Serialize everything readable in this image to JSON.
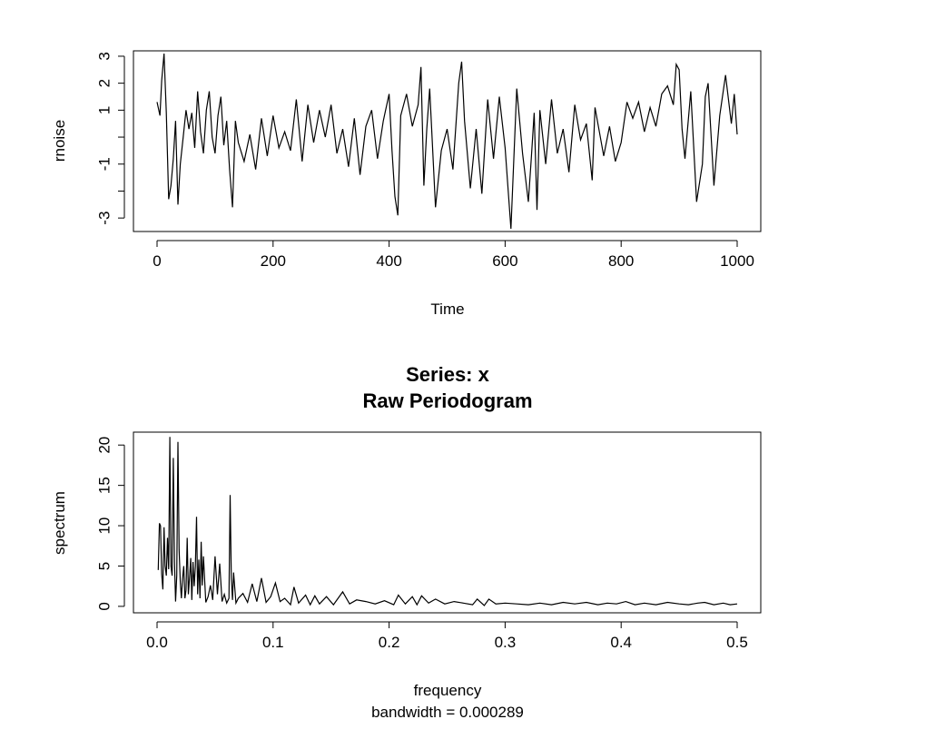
{
  "chart_data": [
    {
      "type": "line",
      "title": "",
      "xlabel": "Time",
      "ylabel": "rnoise",
      "xlim": [
        0,
        1000
      ],
      "ylim": [
        -3.5,
        3.2
      ],
      "x_ticks": [
        0,
        200,
        400,
        600,
        800,
        1000
      ],
      "x_tick_labels": [
        "0",
        "200",
        "400",
        "600",
        "800",
        "1000"
      ],
      "y_ticks": [
        -3,
        -2,
        -1,
        0,
        1,
        2,
        3
      ],
      "y_tick_labels": [
        "-3",
        "",
        "-1",
        "",
        "1",
        "2",
        "3"
      ],
      "series": [
        {
          "name": "rnoise",
          "x": [
            0,
            5,
            8,
            12,
            16,
            20,
            24,
            28,
            32,
            36,
            40,
            45,
            50,
            55,
            60,
            65,
            70,
            75,
            80,
            85,
            90,
            95,
            100,
            105,
            110,
            115,
            120,
            125,
            130,
            135,
            140,
            150,
            160,
            170,
            180,
            190,
            200,
            210,
            220,
            230,
            240,
            250,
            260,
            270,
            280,
            290,
            300,
            310,
            320,
            330,
            340,
            350,
            360,
            370,
            380,
            390,
            400,
            405,
            410,
            415,
            420,
            430,
            440,
            450,
            455,
            460,
            465,
            470,
            480,
            490,
            500,
            510,
            520,
            525,
            530,
            540,
            550,
            560,
            570,
            580,
            590,
            600,
            610,
            620,
            630,
            640,
            645,
            650,
            655,
            660,
            670,
            680,
            690,
            700,
            710,
            720,
            730,
            740,
            750,
            755,
            760,
            770,
            780,
            790,
            800,
            810,
            820,
            830,
            840,
            850,
            860,
            870,
            880,
            890,
            895,
            900,
            905,
            910,
            920,
            930,
            940,
            945,
            950,
            960,
            970,
            980,
            990,
            995,
            1000
          ],
          "values": [
            1.3,
            0.8,
            2.1,
            3.1,
            0.9,
            -2.3,
            -1.8,
            -0.8,
            0.6,
            -2.5,
            -1.0,
            0.0,
            1.0,
            0.3,
            0.9,
            -0.4,
            1.7,
            0.2,
            -0.6,
            1.0,
            1.7,
            0.0,
            -0.6,
            0.8,
            1.5,
            -0.3,
            0.6,
            -1.2,
            -2.6,
            0.6,
            -0.2,
            -0.9,
            0.1,
            -1.2,
            0.7,
            -0.7,
            0.8,
            -0.4,
            0.2,
            -0.5,
            1.4,
            -0.9,
            1.2,
            -0.2,
            1.0,
            0.0,
            1.2,
            -0.6,
            0.3,
            -1.1,
            0.7,
            -1.4,
            0.4,
            1.0,
            -0.8,
            0.6,
            1.6,
            -0.5,
            -2.2,
            -2.9,
            0.8,
            1.6,
            0.4,
            1.2,
            2.6,
            -1.8,
            0.3,
            1.8,
            -2.6,
            -0.5,
            0.3,
            -1.2,
            2.0,
            2.8,
            0.6,
            -1.9,
            0.3,
            -2.1,
            1.4,
            -0.8,
            1.5,
            -0.4,
            -3.4,
            1.8,
            -0.6,
            -2.4,
            -0.8,
            0.9,
            -2.7,
            1.0,
            -1.0,
            1.4,
            -0.6,
            0.3,
            -1.3,
            1.2,
            -0.1,
            0.5,
            -1.6,
            1.1,
            0.5,
            -0.7,
            0.4,
            -0.9,
            -0.2,
            1.3,
            0.7,
            1.3,
            0.2,
            1.1,
            0.4,
            1.6,
            1.9,
            1.2,
            2.7,
            2.5,
            0.3,
            -0.8,
            1.7,
            -2.4,
            -1.0,
            1.5,
            2.0,
            -1.8,
            0.8,
            2.3,
            0.5,
            1.6,
            0.1
          ]
        }
      ]
    },
    {
      "type": "line",
      "title": "Series: x",
      "subtitle": "Raw Periodogram",
      "xlabel": "frequency",
      "xlabel_sub": "bandwidth = 0.000289",
      "ylabel": "spectrum",
      "xlim": [
        0,
        0.5
      ],
      "ylim": [
        -0.8,
        21.6
      ],
      "x_ticks": [
        0,
        0.1,
        0.2,
        0.3,
        0.4,
        0.5
      ],
      "x_tick_labels": [
        "0.0",
        "0.1",
        "0.2",
        "0.3",
        "0.4",
        "0.5"
      ],
      "y_ticks": [
        0,
        5,
        10,
        15,
        20
      ],
      "y_tick_labels": [
        "0",
        "5",
        "10",
        "15",
        "20"
      ],
      "series": [
        {
          "name": "spectrum",
          "x": [
            0.001,
            0.002,
            0.003,
            0.004,
            0.005,
            0.006,
            0.007,
            0.008,
            0.009,
            0.01,
            0.011,
            0.012,
            0.013,
            0.014,
            0.015,
            0.016,
            0.017,
            0.018,
            0.019,
            0.02,
            0.021,
            0.022,
            0.023,
            0.024,
            0.025,
            0.026,
            0.027,
            0.028,
            0.029,
            0.03,
            0.031,
            0.032,
            0.033,
            0.034,
            0.035,
            0.036,
            0.037,
            0.038,
            0.039,
            0.04,
            0.042,
            0.044,
            0.046,
            0.048,
            0.05,
            0.052,
            0.054,
            0.056,
            0.058,
            0.06,
            0.062,
            0.063,
            0.064,
            0.065,
            0.066,
            0.068,
            0.07,
            0.074,
            0.078,
            0.082,
            0.086,
            0.09,
            0.094,
            0.098,
            0.102,
            0.106,
            0.11,
            0.115,
            0.118,
            0.122,
            0.128,
            0.132,
            0.136,
            0.14,
            0.146,
            0.152,
            0.16,
            0.166,
            0.172,
            0.18,
            0.188,
            0.196,
            0.204,
            0.208,
            0.214,
            0.22,
            0.224,
            0.228,
            0.234,
            0.24,
            0.248,
            0.256,
            0.264,
            0.272,
            0.276,
            0.282,
            0.286,
            0.292,
            0.3,
            0.31,
            0.32,
            0.33,
            0.34,
            0.35,
            0.36,
            0.37,
            0.38,
            0.388,
            0.396,
            0.404,
            0.412,
            0.42,
            0.43,
            0.44,
            0.45,
            0.458,
            0.466,
            0.472,
            0.48,
            0.488,
            0.494,
            0.5
          ],
          "values": [
            4.5,
            10.3,
            10.0,
            4.0,
            2.1,
            9.8,
            5.0,
            3.8,
            8.5,
            4.6,
            21.0,
            5.0,
            3.8,
            18.4,
            5.5,
            0.6,
            3.8,
            20.4,
            7.0,
            3.0,
            1.0,
            3.5,
            5.0,
            1.0,
            2.0,
            8.5,
            1.5,
            3.6,
            6.0,
            0.8,
            5.5,
            2.5,
            5.0,
            11.1,
            1.5,
            5.8,
            1.0,
            8.0,
            2.6,
            6.2,
            0.5,
            1.2,
            2.6,
            0.8,
            6.2,
            1.5,
            5.3,
            0.6,
            1.5,
            0.4,
            1.0,
            13.8,
            3.5,
            0.8,
            4.2,
            0.4,
            1.0,
            1.6,
            0.5,
            2.8,
            0.6,
            3.5,
            0.5,
            1.2,
            2.9,
            0.6,
            1.0,
            0.2,
            2.4,
            0.4,
            1.4,
            0.2,
            1.3,
            0.3,
            1.2,
            0.2,
            1.8,
            0.3,
            0.8,
            0.6,
            0.3,
            0.7,
            0.2,
            1.4,
            0.3,
            1.2,
            0.2,
            1.3,
            0.4,
            0.9,
            0.3,
            0.6,
            0.4,
            0.2,
            0.9,
            0.1,
            0.9,
            0.3,
            0.4,
            0.3,
            0.2,
            0.4,
            0.2,
            0.5,
            0.3,
            0.5,
            0.2,
            0.4,
            0.3,
            0.6,
            0.2,
            0.4,
            0.2,
            0.5,
            0.3,
            0.2,
            0.4,
            0.5,
            0.2,
            0.4,
            0.2,
            0.3
          ]
        }
      ]
    }
  ]
}
